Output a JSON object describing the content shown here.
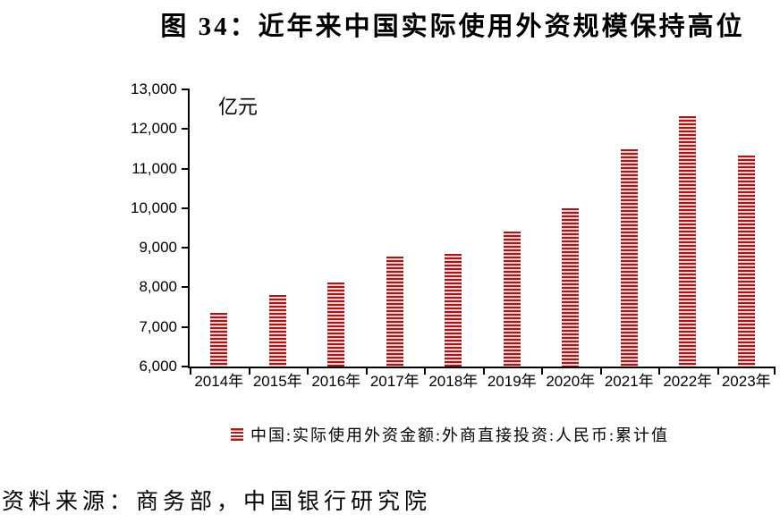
{
  "figure": {
    "title": "图 34：近年来中国实际使用外资规模保持高位",
    "source_note": "资料来源：商务部，中国银行研究院"
  },
  "chart_data": {
    "type": "bar",
    "title": "图 34：近年来中国实际使用外资规模保持高位",
    "unit_label": "亿元",
    "categories": [
      "2014年",
      "2015年",
      "2016年",
      "2017年",
      "2018年",
      "2019年",
      "2020年",
      "2021年",
      "2022年",
      "2023年"
    ],
    "values": [
      7363.7,
      7813.5,
      8132.2,
      8775.6,
      8856.1,
      9415.2,
      9999.8,
      11493.6,
      12326.8,
      11339.1
    ],
    "xlabel": "",
    "ylabel": "亿元",
    "ylim": [
      6000,
      13000
    ],
    "ytick_step": 1000,
    "ytick_labels": [
      "6,000",
      "7,000",
      "8,000",
      "9,000",
      "10,000",
      "11,000",
      "12,000",
      "13,000"
    ],
    "grid": false,
    "legend_position": "bottom",
    "legend": [
      {
        "label": "中国:实际使用外资金额:外商直接投资:人民币:累计值",
        "swatch": "striped-red-bar"
      }
    ],
    "colors": {
      "bar_stripe_dark": "#9b1c1c",
      "bar_stripe_light": "#f1c7c7",
      "legend_swatch_dark": "#a32020",
      "legend_swatch_light": "#ffffff",
      "axis": "#000000",
      "text": "#000000"
    }
  }
}
